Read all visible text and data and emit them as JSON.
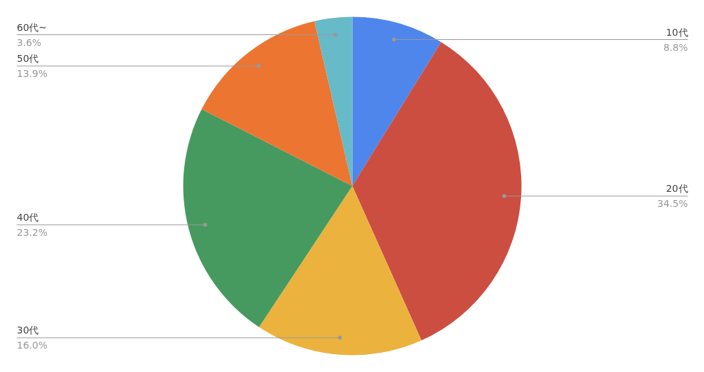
{
  "chart_data": {
    "type": "pie",
    "categories": [
      "10代",
      "20代",
      "30代",
      "40代",
      "50代",
      "60代~"
    ],
    "values": [
      8.8,
      34.5,
      16.0,
      23.2,
      13.9,
      3.6
    ],
    "value_labels": [
      "8.8%",
      "34.5%",
      "16.0%",
      "23.2%",
      "13.9%",
      "3.6%"
    ],
    "colors": [
      "#4f86ec",
      "#cb4e41",
      "#ebb33d",
      "#479a5f",
      "#ec7532",
      "#67bac7"
    ]
  }
}
